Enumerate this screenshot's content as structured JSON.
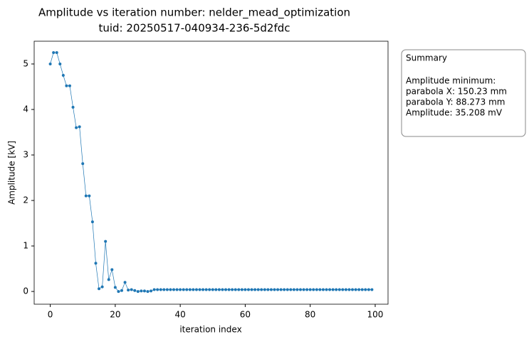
{
  "chart_data": {
    "type": "line",
    "title": "Amplitude vs iteration number: nelder_mead_optimization",
    "subtitle": "tuid: 20250517-040934-236-5d2fdc",
    "x_label": "iteration index",
    "y_label": "Amplitude [kV]",
    "x": [
      0,
      1,
      2,
      3,
      4,
      5,
      6,
      7,
      8,
      9,
      10,
      11,
      12,
      13,
      14,
      15,
      16,
      17,
      18,
      19,
      20,
      21,
      22,
      23,
      24,
      25,
      26,
      27,
      28,
      29,
      30,
      31,
      32,
      33,
      34,
      35,
      36,
      37,
      38,
      39,
      40,
      41,
      42,
      43,
      44,
      45,
      46,
      47,
      48,
      49,
      50,
      51,
      52,
      53,
      54,
      55,
      56,
      57,
      58,
      59,
      60,
      61,
      62,
      63,
      64,
      65,
      66,
      67,
      68,
      69,
      70,
      71,
      72,
      73,
      74,
      75,
      76,
      77,
      78,
      79,
      80,
      81,
      82,
      83,
      84,
      85,
      86,
      87,
      88,
      89,
      90,
      91,
      92,
      93,
      94,
      95,
      96,
      97,
      98,
      99
    ],
    "series": [
      {
        "name": "Amplitude",
        "color": "#1f77b4",
        "values": [
          5.0,
          5.25,
          5.25,
          5.0,
          4.75,
          4.52,
          4.52,
          4.05,
          3.6,
          3.62,
          2.81,
          2.1,
          2.1,
          1.53,
          0.62,
          0.06,
          0.1,
          1.1,
          0.26,
          0.48,
          0.09,
          0.0,
          0.02,
          0.2,
          0.03,
          0.04,
          0.02,
          0.0,
          0.01,
          0.01,
          0.0,
          0.01,
          0.04,
          0.04,
          0.04,
          0.04,
          0.04,
          0.04,
          0.04,
          0.04,
          0.04,
          0.04,
          0.04,
          0.04,
          0.04,
          0.04,
          0.04,
          0.04,
          0.04,
          0.04,
          0.04,
          0.04,
          0.04,
          0.04,
          0.04,
          0.04,
          0.04,
          0.04,
          0.04,
          0.04,
          0.04,
          0.04,
          0.04,
          0.04,
          0.04,
          0.04,
          0.04,
          0.04,
          0.04,
          0.04,
          0.04,
          0.04,
          0.04,
          0.04,
          0.04,
          0.04,
          0.04,
          0.04,
          0.04,
          0.04,
          0.04,
          0.04,
          0.04,
          0.04,
          0.04,
          0.04,
          0.04,
          0.04,
          0.04,
          0.04,
          0.04,
          0.04,
          0.04,
          0.04,
          0.04,
          0.04,
          0.04,
          0.04,
          0.04,
          0.04
        ]
      }
    ],
    "xlim": [
      -4.95,
      103.95
    ],
    "xticks": [
      0,
      20,
      40,
      60,
      80,
      100
    ],
    "ylim": [
      -0.28,
      5.5
    ],
    "yticks": [
      0,
      1,
      2,
      3,
      4,
      5
    ],
    "summary": {
      "title": "Summary",
      "lines": [
        "Amplitude minimum:",
        "parabola X: 150.23 mm",
        "parabola Y: 88.273 mm",
        "Amplitude: 35.208 mV"
      ]
    }
  }
}
